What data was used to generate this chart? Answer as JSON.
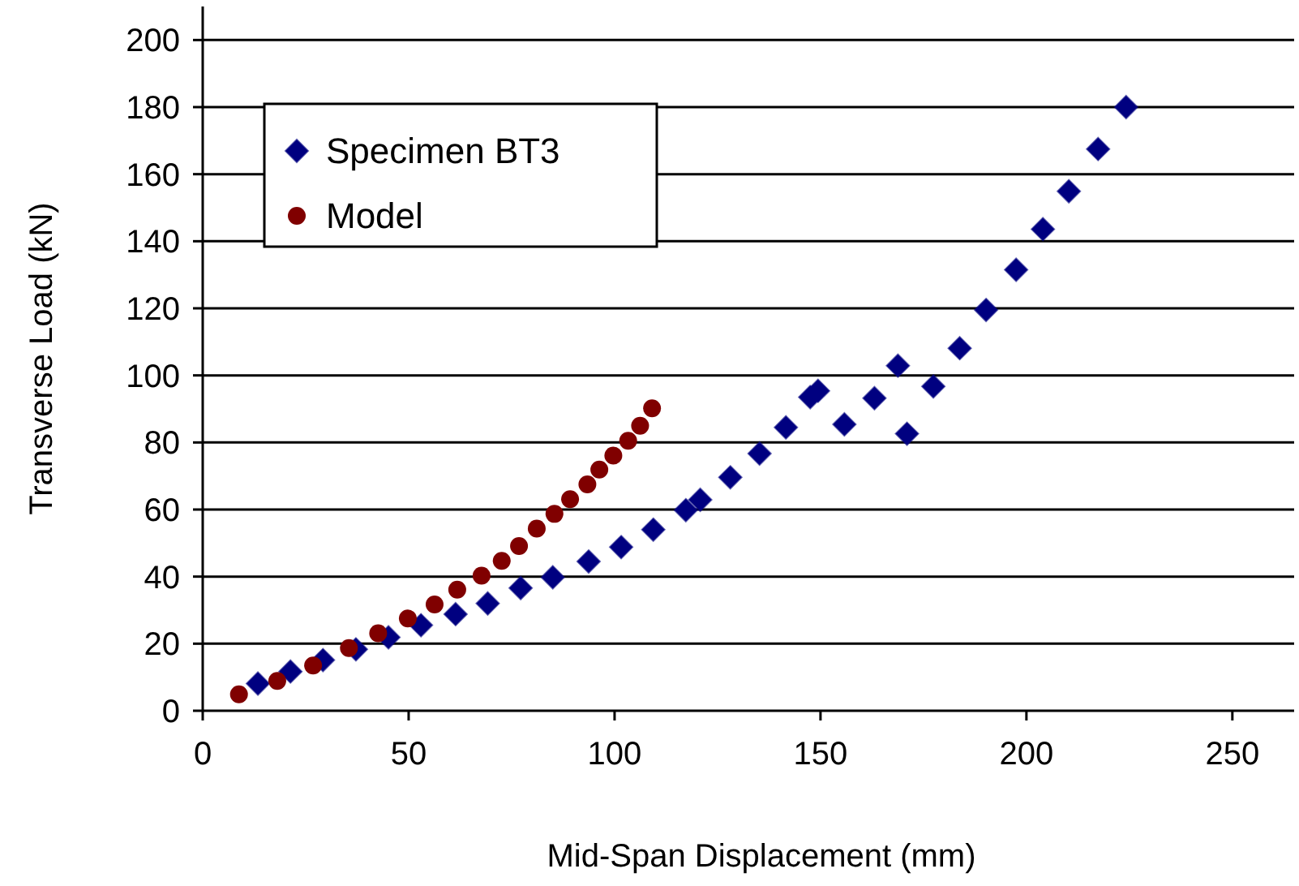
{
  "chart_data": {
    "type": "scatter",
    "xlabel": "Mid-Span Displacement (mm)",
    "ylabel": "Transverse Load (kN)",
    "xlim": [
      0,
      265
    ],
    "xticks": [
      0,
      50,
      100,
      150,
      200,
      250
    ],
    "ylim": [
      0,
      210
    ],
    "yticks": [
      0,
      20,
      40,
      60,
      80,
      100,
      120,
      140,
      160,
      180,
      200
    ],
    "grid": "y",
    "legend": "top left",
    "series": [
      {
        "name": "Specimen BT3",
        "color": "#000080",
        "marker": "diamond",
        "x": [
          13.4,
          21.3,
          29.2,
          37.2,
          45.1,
          53.0,
          61.4,
          69.2,
          77.2,
          85.0,
          93.7,
          101.6,
          109.4,
          117.3,
          120.8,
          128.1,
          135.2,
          141.6,
          147.5,
          149.4,
          155.8,
          163.1,
          168.8,
          171.0,
          177.4,
          183.8,
          190.2,
          197.5,
          204.0,
          210.3,
          217.4,
          224.2
        ],
        "values": [
          8.1,
          11.7,
          15.1,
          18.3,
          21.9,
          25.5,
          28.8,
          32.0,
          36.6,
          39.8,
          44.5,
          48.8,
          54.0,
          59.8,
          62.9,
          69.6,
          76.7,
          84.5,
          93.5,
          95.4,
          85.4,
          93.2,
          102.9,
          82.6,
          96.7,
          108.1,
          119.5,
          131.5,
          143.6,
          154.9,
          167.5,
          180.0
        ]
      },
      {
        "name": "Model",
        "color": "#800000",
        "marker": "circle",
        "x": [
          8.8,
          18.1,
          26.8,
          35.5,
          42.6,
          49.8,
          56.3,
          61.8,
          67.7,
          72.6,
          76.8,
          81.1,
          85.4,
          89.2,
          93.4,
          96.3,
          99.7,
          103.3,
          106.2,
          109.1
        ],
        "values": [
          4.9,
          8.9,
          13.5,
          18.7,
          23.1,
          27.5,
          31.7,
          36.1,
          40.3,
          44.7,
          49.1,
          54.3,
          58.7,
          63.1,
          67.5,
          71.9,
          76.1,
          80.5,
          85.0,
          90.2
        ]
      }
    ]
  }
}
